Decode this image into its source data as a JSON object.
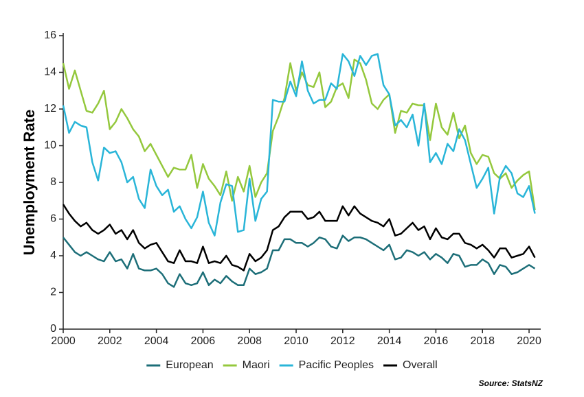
{
  "chart_data": {
    "type": "line",
    "y_label": "Unemployment Rate",
    "source": "Source: StatsNZ",
    "x": [
      2000,
      2000.25,
      2000.5,
      2000.75,
      2001,
      2001.25,
      2001.5,
      2001.75,
      2002,
      2002.25,
      2002.5,
      2002.75,
      2003,
      2003.25,
      2003.5,
      2003.75,
      2004,
      2004.25,
      2004.5,
      2004.75,
      2005,
      2005.25,
      2005.5,
      2005.75,
      2006,
      2006.25,
      2006.5,
      2006.75,
      2007,
      2007.25,
      2007.5,
      2007.75,
      2008,
      2008.25,
      2008.5,
      2008.75,
      2009,
      2009.25,
      2009.5,
      2009.75,
      2010,
      2010.25,
      2010.5,
      2010.75,
      2011,
      2011.25,
      2011.5,
      2011.75,
      2012,
      2012.25,
      2012.5,
      2012.75,
      2013,
      2013.25,
      2013.5,
      2013.75,
      2014,
      2014.25,
      2014.5,
      2014.75,
      2015,
      2015.25,
      2015.5,
      2015.75,
      2016,
      2016.25,
      2016.5,
      2016.75,
      2017,
      2017.25,
      2017.5,
      2017.75,
      2018,
      2018.25,
      2018.5,
      2018.75,
      2019,
      2019.25,
      2019.5,
      2019.75,
      2020,
      2020.25
    ],
    "series": [
      {
        "name": "European",
        "color": "#1c6e78",
        "values": [
          5.0,
          4.6,
          4.2,
          4.0,
          4.2,
          4.0,
          3.8,
          3.7,
          4.2,
          3.7,
          3.8,
          3.3,
          4.1,
          3.3,
          3.2,
          3.2,
          3.3,
          3.0,
          2.5,
          2.3,
          3.0,
          2.5,
          2.4,
          2.5,
          3.1,
          2.4,
          2.7,
          2.5,
          2.9,
          2.6,
          2.4,
          2.4,
          3.3,
          3.0,
          3.1,
          3.3,
          4.3,
          4.3,
          4.9,
          4.9,
          4.7,
          4.7,
          4.5,
          4.7,
          5.0,
          4.9,
          4.5,
          4.4,
          5.1,
          4.8,
          5.0,
          5.0,
          4.9,
          4.7,
          4.5,
          4.3,
          4.6,
          3.8,
          3.9,
          4.3,
          4.2,
          4.0,
          4.2,
          3.8,
          4.1,
          3.9,
          3.6,
          4.1,
          4.0,
          3.4,
          3.5,
          3.5,
          3.8,
          3.6,
          3.0,
          3.5,
          3.4,
          3.0,
          3.1,
          3.3,
          3.5,
          3.3
        ]
      },
      {
        "name": "Maori",
        "color": "#94c83d",
        "values": [
          14.5,
          13.1,
          14.1,
          13.0,
          11.9,
          11.8,
          12.3,
          13.0,
          10.9,
          11.3,
          12.0,
          11.5,
          10.9,
          10.5,
          9.7,
          10.1,
          9.5,
          8.9,
          8.3,
          8.8,
          8.7,
          8.7,
          9.5,
          7.7,
          9.0,
          8.2,
          7.8,
          7.3,
          8.6,
          7.0,
          8.3,
          7.5,
          8.9,
          7.2,
          8.0,
          8.5,
          10.8,
          11.6,
          12.6,
          14.5,
          13.0,
          14.0,
          13.3,
          13.2,
          14.0,
          12.1,
          12.4,
          13.2,
          13.4,
          12.6,
          14.7,
          14.5,
          13.6,
          12.3,
          12.0,
          12.5,
          12.8,
          10.7,
          11.9,
          11.8,
          12.3,
          12.2,
          12.2,
          10.3,
          12.3,
          11.0,
          10.6,
          11.8,
          10.4,
          11.1,
          9.6,
          9.0,
          9.5,
          9.4,
          8.5,
          8.2,
          8.5,
          7.7,
          8.1,
          8.4,
          8.6,
          6.5
        ]
      },
      {
        "name": "Pacific Peoples",
        "color": "#29b5d8",
        "values": [
          12.2,
          10.7,
          11.3,
          11.1,
          11.0,
          9.1,
          8.1,
          9.9,
          9.6,
          9.7,
          9.1,
          8.0,
          8.3,
          7.1,
          6.6,
          8.7,
          7.8,
          7.3,
          7.6,
          6.4,
          6.7,
          6.0,
          5.5,
          6.1,
          7.5,
          5.8,
          5.1,
          6.9,
          7.9,
          7.8,
          5.3,
          5.4,
          8.2,
          5.9,
          7.1,
          7.5,
          12.5,
          12.4,
          12.4,
          13.5,
          12.7,
          14.6,
          13.0,
          12.3,
          12.5,
          12.5,
          13.4,
          13.1,
          15.0,
          14.6,
          13.8,
          14.9,
          14.4,
          14.9,
          15.0,
          13.3,
          12.8,
          11.1,
          11.4,
          11.0,
          11.7,
          10.0,
          12.3,
          9.1,
          9.6,
          9.0,
          10.1,
          9.7,
          10.9,
          10.3,
          9.0,
          7.7,
          8.2,
          8.8,
          6.3,
          8.3,
          8.9,
          8.5,
          7.4,
          7.2,
          7.8,
          6.3
        ]
      },
      {
        "name": "Overall",
        "color": "#000000",
        "values": [
          6.8,
          6.3,
          5.9,
          5.6,
          5.8,
          5.4,
          5.2,
          5.4,
          5.7,
          5.2,
          5.4,
          4.9,
          5.4,
          4.7,
          4.4,
          4.6,
          4.7,
          4.2,
          3.7,
          3.6,
          4.3,
          3.7,
          3.7,
          3.6,
          4.5,
          3.6,
          3.7,
          3.6,
          4.0,
          3.5,
          3.4,
          3.2,
          4.1,
          3.7,
          3.9,
          4.3,
          5.4,
          5.6,
          6.1,
          6.4,
          6.4,
          6.4,
          6.0,
          6.1,
          6.4,
          5.9,
          5.9,
          5.9,
          6.7,
          6.2,
          6.7,
          6.3,
          6.1,
          5.9,
          5.8,
          5.6,
          6.0,
          5.1,
          5.2,
          5.5,
          5.8,
          5.4,
          5.6,
          4.9,
          5.5,
          5.0,
          4.9,
          5.2,
          5.2,
          4.7,
          4.6,
          4.4,
          4.6,
          4.3,
          3.9,
          4.4,
          4.4,
          3.9,
          4.0,
          4.1,
          4.5,
          3.9
        ]
      }
    ],
    "xlim": [
      2000,
      2020.5
    ],
    "xticks": [
      2000,
      2002,
      2004,
      2006,
      2008,
      2010,
      2012,
      2014,
      2016,
      2018,
      2020
    ],
    "ylim": [
      0,
      16
    ],
    "yticks": [
      0,
      2,
      4,
      6,
      8,
      10,
      12,
      14,
      16
    ],
    "grid": false,
    "legend": "bottom"
  }
}
